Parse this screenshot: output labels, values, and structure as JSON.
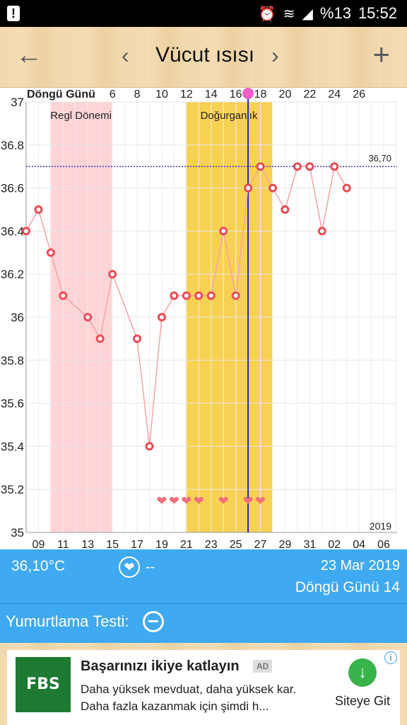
{
  "statusbar": {
    "battery": "%13",
    "time": "15:52"
  },
  "header": {
    "title": "Vücut ısısı"
  },
  "chart_data": {
    "type": "line",
    "top_axis_label": "Döngü Günü",
    "top_ticks": [
      "6",
      "8",
      "10",
      "12",
      "14",
      "16",
      "18",
      "20",
      "22",
      "24",
      "26"
    ],
    "bottom_ticks": [
      "09",
      "11",
      "13",
      "15",
      "17",
      "19",
      "21",
      "23",
      "25",
      "27",
      "29",
      "31",
      "02",
      "04",
      "06"
    ],
    "ylim": [
      35,
      37
    ],
    "yticks": [
      "37",
      "36.8",
      "36.6",
      "36.4",
      "36.2",
      "36",
      "35.8",
      "35.6",
      "35.4",
      "35.2",
      "35"
    ],
    "year_label": "2019",
    "series": [
      {
        "values": [
          {
            "x": 0,
            "y": 36.4
          },
          {
            "x": 1,
            "y": 36.5
          },
          {
            "x": 2,
            "y": 36.3
          },
          {
            "x": 3,
            "y": 36.1
          },
          {
            "x": 5,
            "y": 36.0
          },
          {
            "x": 6,
            "y": 35.9
          },
          {
            "x": 7,
            "y": 36.2
          },
          {
            "x": 9,
            "y": 35.9
          },
          {
            "x": 10,
            "y": 35.4
          },
          {
            "x": 11,
            "y": 36.0
          },
          {
            "x": 12,
            "y": 36.1
          },
          {
            "x": 13,
            "y": 36.1
          },
          {
            "x": 14,
            "y": 36.1
          },
          {
            "x": 15,
            "y": 36.1
          },
          {
            "x": 16,
            "y": 36.4
          },
          {
            "x": 17,
            "y": 36.1
          },
          {
            "x": 18,
            "y": 36.6
          },
          {
            "x": 19,
            "y": 36.7
          },
          {
            "x": 20,
            "y": 36.6
          },
          {
            "x": 21,
            "y": 36.5
          },
          {
            "x": 22,
            "y": 36.7
          },
          {
            "x": 23,
            "y": 36.7
          },
          {
            "x": 24,
            "y": 36.4
          },
          {
            "x": 25,
            "y": 36.7
          },
          {
            "x": 26,
            "y": 36.6
          }
        ]
      }
    ],
    "reference_line": {
      "value": 36.7,
      "label": "36,70"
    },
    "bands": [
      {
        "label": "Regl Dönemi",
        "from": 1.95,
        "to": 6.95,
        "color": "#ffd4d7"
      },
      {
        "label": "Doğurganlık",
        "from": 12.95,
        "to": 19.95,
        "color": "#f9d152"
      }
    ],
    "current_day_x": 18,
    "heart_days": [
      11,
      12,
      13,
      14,
      16,
      18,
      19
    ],
    "colors": {
      "line": "#f4a3a8",
      "marker": "#ea4b57",
      "ref_line": "#2323c8",
      "current": "#2323c8",
      "heart": "#f0707a"
    }
  },
  "info": {
    "temperature": "36,10°C",
    "intercourse": "--",
    "date": "23 Mar 2019",
    "cycle_day": "Döngü Günü 14"
  },
  "ovulation": {
    "label": "Yumurtlama Testi:"
  },
  "ad": {
    "logo_text": "FBS",
    "headline": "Başarınızı ikiye katlayın",
    "badge": "AD",
    "description": "Daha yüksek mevduat, daha yüksek kar. Daha fazla kazanmak için şimdi h...",
    "cta": "Siteye Git"
  }
}
